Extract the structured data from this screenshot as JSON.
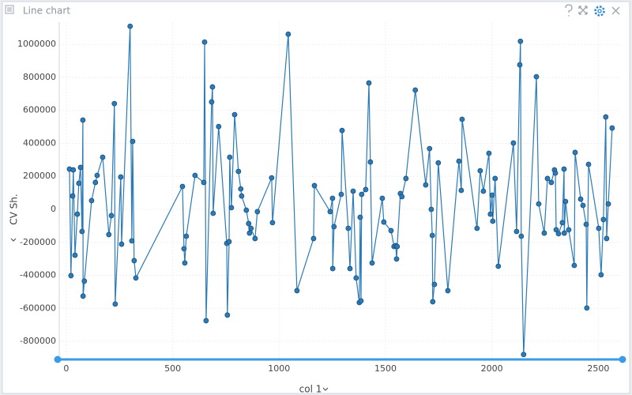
{
  "window_title": "Line chart",
  "chart_data": {
    "type": "line",
    "x_label": "col 1",
    "y_label": "CV Sh.",
    "color": "#2b7bb9",
    "grid": true,
    "xlim": [
      -33,
      2610
    ],
    "ylim": [
      -910000,
      1135000
    ],
    "xticks": [
      0,
      500,
      1000,
      1500,
      2000,
      2500
    ],
    "yticks": [
      -800000,
      -600000,
      -400000,
      -200000,
      0,
      200000,
      400000,
      600000,
      800000,
      1000000
    ],
    "x": [
      15,
      22,
      30,
      33,
      41,
      52,
      59,
      67,
      74,
      78,
      79,
      85,
      119,
      137,
      145,
      171,
      200,
      212,
      226,
      230,
      256,
      260,
      300,
      308,
      312,
      319,
      327,
      546,
      553,
      557,
      564,
      605,
      646,
      650,
      657,
      683,
      687,
      690,
      716,
      754,
      757,
      765,
      768,
      776,
      791,
      809,
      820,
      824,
      846,
      857,
      861,
      868,
      887,
      898,
      965,
      969,
      1043,
      1084,
      1162,
      1166,
      1240,
      1251,
      1252,
      1258,
      1292,
      1296,
      1325,
      1333,
      1348,
      1362,
      1377,
      1381,
      1385,
      1388,
      1407,
      1422,
      1429,
      1437,
      1485,
      1492,
      1526,
      1540,
      1548,
      1552,
      1555,
      1570,
      1577,
      1596,
      1640,
      1689,
      1707,
      1715,
      1720,
      1722,
      1730,
      1748,
      1793,
      1845,
      1856,
      1860,
      1930,
      1945,
      1960,
      1986,
      1993,
      2001,
      2004,
      2015,
      2030,
      2101,
      2116,
      2131,
      2134,
      2138,
      2149,
      2209,
      2220,
      2246,
      2261,
      2279,
      2294,
      2298,
      2302,
      2313,
      2331,
      2339,
      2340,
      2346,
      2361,
      2387,
      2391,
      2417,
      2428,
      2443,
      2446,
      2454,
      2502,
      2513,
      2524,
      2535,
      2539,
      2547,
      2565
    ],
    "values": [
      244000,
      -402000,
      81000,
      239000,
      -278000,
      -29000,
      158000,
      254000,
      -134000,
      541000,
      -526000,
      -435000,
      53000,
      163000,
      206000,
      316000,
      -153000,
      -38000,
      641000,
      -574000,
      196000,
      -211000,
      1110000,
      -191000,
      412000,
      -311000,
      -416000,
      139000,
      -239000,
      -325000,
      -163000,
      206000,
      163000,
      1014000,
      -675000,
      651000,
      742000,
      -24000,
      502000,
      -206000,
      -641000,
      -196000,
      316000,
      10000,
      574000,
      230000,
      124000,
      81000,
      -5000,
      -86000,
      -144000,
      -115000,
      -177000,
      -14000,
      191000,
      -81000,
      1062000,
      -493000,
      -177000,
      144000,
      -14000,
      67000,
      -359000,
      -105000,
      91000,
      478000,
      -115000,
      -359000,
      110000,
      -416000,
      -565000,
      -48000,
      -555000,
      91000,
      120000,
      766000,
      287000,
      -325000,
      67000,
      -77000,
      -129000,
      -225000,
      -220000,
      -301000,
      -225000,
      96000,
      77000,
      187000,
      723000,
      148000,
      368000,
      0,
      -158000,
      -560000,
      -455000,
      282000,
      -493000,
      292000,
      115000,
      546000,
      -115000,
      234000,
      110000,
      340000,
      -29000,
      86000,
      -72000,
      187000,
      -345000,
      402000,
      -134000,
      876000,
      1019000,
      -163000,
      -880000,
      804000,
      33000,
      -144000,
      187000,
      163000,
      239000,
      220000,
      -124000,
      -148000,
      -81000,
      244000,
      -144000,
      48000,
      -124000,
      -340000,
      345000,
      62000,
      24000,
      -91000,
      -598000,
      273000,
      -115000,
      -397000,
      -62000,
      560000,
      -177000,
      33000,
      493000
    ]
  }
}
